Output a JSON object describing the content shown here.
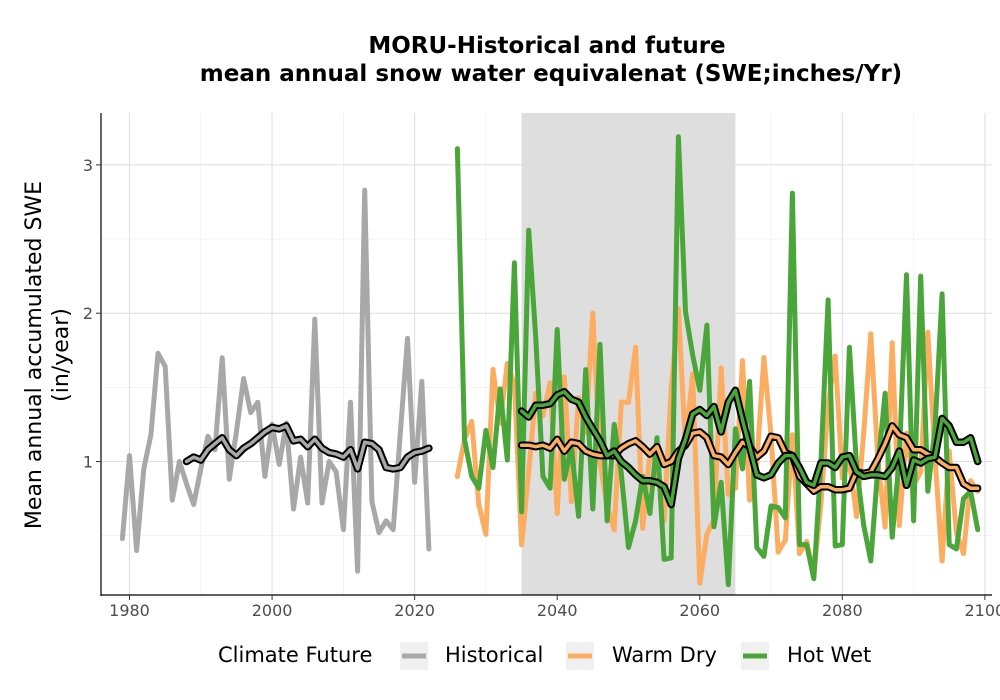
{
  "chart_data": {
    "type": "line",
    "title_line1": "MORU-Historical and future",
    "title_line2": "mean annual snow water equivalenat (SWE;inches/Yr)",
    "xlabel": "",
    "ylabel_line1": "Mean annual accumulated SWE",
    "ylabel_line2": "(in/year)",
    "xlim": [
      1976,
      2101
    ],
    "ylim": [
      0.1,
      3.35
    ],
    "x_ticks": [
      1980,
      2000,
      2020,
      2040,
      2060,
      2080,
      2100
    ],
    "y_ticks": [
      1,
      2,
      3
    ],
    "grid": true,
    "shaded_period": [
      2035,
      2065
    ],
    "legend": {
      "title": "Climate Future",
      "placement": "bottom",
      "entries": [
        "Historical",
        "Warm Dry",
        "Hot Wet"
      ]
    },
    "colors": {
      "Historical": "#a8a8a8",
      "Warm Dry": "#fdad62",
      "Hot Wet": "#4aa63a",
      "moving_average_core": "#000000",
      "shaded_period": "#dcdcdc"
    },
    "series": [
      {
        "name": "Historical",
        "x": [
          1979,
          1980,
          1981,
          1982,
          1983,
          1984,
          1985,
          1986,
          1987,
          1988,
          1989,
          1990,
          1991,
          1992,
          1993,
          1994,
          1995,
          1996,
          1997,
          1998,
          1999,
          2000,
          2001,
          2002,
          2003,
          2004,
          2005,
          2006,
          2007,
          2008,
          2009,
          2010,
          2011,
          2012,
          2013,
          2014,
          2015,
          2016,
          2017,
          2018,
          2019,
          2020,
          2021,
          2022
        ],
        "values": [
          0.48,
          1.04,
          0.4,
          0.95,
          1.18,
          1.73,
          1.64,
          0.74,
          1.0,
          0.85,
          0.71,
          0.95,
          1.17,
          1.08,
          1.7,
          0.88,
          1.2,
          1.56,
          1.33,
          1.4,
          0.9,
          1.25,
          0.98,
          1.26,
          0.68,
          1.03,
          0.72,
          1.96,
          0.72,
          1.0,
          0.93,
          0.54,
          1.4,
          0.26,
          2.83,
          0.73,
          0.52,
          0.6,
          0.54,
          1.2,
          1.83,
          0.86,
          1.54,
          0.41
        ],
        "moving_average": {
          "x": [
            1988,
            1989,
            1990,
            1991,
            1992,
            1993,
            1994,
            1995,
            1996,
            1997,
            1998,
            1999,
            2000,
            2001,
            2002,
            2003,
            2004,
            2005,
            2006,
            2007,
            2008,
            2009,
            2010,
            2011,
            2012,
            2013,
            2014,
            2015,
            2016,
            2017,
            2018,
            2019,
            2020,
            2021,
            2022
          ],
          "values": [
            1.0,
            1.03,
            1.01,
            1.08,
            1.12,
            1.16,
            1.08,
            1.04,
            1.09,
            1.12,
            1.16,
            1.2,
            1.23,
            1.22,
            1.24,
            1.14,
            1.15,
            1.1,
            1.15,
            1.09,
            1.06,
            1.05,
            1.03,
            1.08,
            0.95,
            1.13,
            1.12,
            1.08,
            0.96,
            0.95,
            0.96,
            1.03,
            1.06,
            1.07,
            1.09
          ]
        }
      },
      {
        "name": "Warm Dry",
        "x": [
          2026,
          2027,
          2028,
          2029,
          2030,
          2031,
          2032,
          2033,
          2034,
          2035,
          2036,
          2037,
          2038,
          2039,
          2040,
          2041,
          2042,
          2043,
          2044,
          2045,
          2046,
          2047,
          2048,
          2049,
          2050,
          2051,
          2052,
          2053,
          2054,
          2055,
          2056,
          2057,
          2058,
          2059,
          2060,
          2061,
          2062,
          2063,
          2064,
          2065,
          2066,
          2067,
          2068,
          2069,
          2070,
          2071,
          2072,
          2073,
          2074,
          2075,
          2076,
          2077,
          2078,
          2079,
          2080,
          2081,
          2082,
          2083,
          2084,
          2085,
          2086,
          2087,
          2088,
          2089,
          2090,
          2091,
          2092,
          2093,
          2094,
          2095,
          2096,
          2097,
          2098,
          2099
        ],
        "values": [
          0.9,
          1.15,
          1.27,
          0.71,
          0.51,
          1.62,
          1.26,
          1.66,
          1.52,
          0.44,
          0.93,
          1.46,
          1.31,
          1.53,
          0.65,
          1.57,
          0.73,
          1.43,
          1.2,
          2.0,
          0.99,
          0.7,
          0.54,
          1.4,
          1.4,
          1.77,
          0.55,
          1.06,
          0.99,
          0.6,
          1.49,
          2.03,
          1.1,
          1.59,
          0.18,
          0.51,
          0.61,
          1.63,
          0.78,
          0.82,
          1.68,
          0.74,
          0.99,
          1.7,
          1.18,
          0.39,
          0.47,
          1.18,
          0.38,
          0.46,
          0.24,
          0.71,
          1.38,
          1.71,
          0.89,
          1.0,
          0.63,
          1.19,
          1.86,
          1.0,
          0.56,
          1.8,
          0.57,
          1.19,
          0.84,
          0.93,
          1.87,
          1.03,
          0.33,
          1.07,
          0.52,
          0.38,
          0.87,
          0.8
        ],
        "moving_average": {
          "x": [
            2035,
            2036,
            2037,
            2038,
            2039,
            2040,
            2041,
            2042,
            2043,
            2044,
            2045,
            2046,
            2047,
            2048,
            2049,
            2050,
            2051,
            2052,
            2053,
            2054,
            2055,
            2056,
            2057,
            2058,
            2059,
            2060,
            2061,
            2062,
            2063,
            2064,
            2065,
            2066,
            2067,
            2068,
            2069,
            2070,
            2071,
            2072,
            2073,
            2074,
            2075,
            2076,
            2077,
            2078,
            2079,
            2080,
            2081,
            2082,
            2083,
            2084,
            2085,
            2086,
            2087,
            2088,
            2089,
            2090,
            2091,
            2092,
            2093,
            2094,
            2095,
            2096,
            2097,
            2098,
            2099
          ],
          "values": [
            1.11,
            1.11,
            1.1,
            1.11,
            1.09,
            1.15,
            1.07,
            1.13,
            1.12,
            1.07,
            1.05,
            1.04,
            1.04,
            1.04,
            1.09,
            1.12,
            1.14,
            1.1,
            1.05,
            1.1,
            0.98,
            1.0,
            1.07,
            1.11,
            1.19,
            1.2,
            1.16,
            1.04,
            1.03,
            0.98,
            1.06,
            1.13,
            1.1,
            1.03,
            1.07,
            1.17,
            1.16,
            1.06,
            1.04,
            0.9,
            0.85,
            0.8,
            0.83,
            0.83,
            0.81,
            0.81,
            0.82,
            0.93,
            0.92,
            0.93,
            1.02,
            1.12,
            1.24,
            1.18,
            1.16,
            1.08,
            1.08,
            1.05,
            1.03,
            0.99,
            0.96,
            0.96,
            0.85,
            0.82,
            0.82
          ]
        }
      },
      {
        "name": "Hot Wet",
        "x": [
          2026,
          2027,
          2028,
          2029,
          2030,
          2031,
          2032,
          2033,
          2034,
          2035,
          2036,
          2037,
          2038,
          2039,
          2040,
          2041,
          2042,
          2043,
          2044,
          2045,
          2046,
          2047,
          2048,
          2049,
          2050,
          2051,
          2052,
          2053,
          2054,
          2055,
          2056,
          2057,
          2058,
          2059,
          2060,
          2061,
          2062,
          2063,
          2064,
          2065,
          2066,
          2067,
          2068,
          2069,
          2070,
          2071,
          2072,
          2073,
          2074,
          2075,
          2076,
          2077,
          2078,
          2079,
          2080,
          2081,
          2082,
          2083,
          2084,
          2085,
          2086,
          2087,
          2088,
          2089,
          2090,
          2091,
          2092,
          2093,
          2094,
          2095,
          2096,
          2097,
          2098,
          2099
        ],
        "values": [
          3.11,
          1.15,
          0.9,
          0.82,
          1.21,
          0.96,
          1.49,
          1.01,
          2.34,
          0.66,
          2.56,
          1.83,
          0.9,
          0.82,
          1.89,
          0.88,
          1.1,
          0.63,
          1.62,
          0.68,
          1.79,
          0.6,
          1.25,
          0.92,
          0.42,
          0.6,
          0.9,
          0.65,
          1.16,
          0.34,
          0.35,
          3.19,
          2.01,
          1.72,
          1.48,
          1.92,
          0.56,
          0.86,
          0.17,
          1.22,
          0.95,
          1.54,
          0.42,
          0.36,
          0.7,
          0.69,
          0.62,
          2.81,
          0.44,
          0.44,
          0.21,
          0.99,
          2.09,
          0.43,
          0.44,
          1.77,
          0.96,
          0.57,
          0.33,
          0.97,
          1.46,
          0.49,
          1.02,
          2.26,
          0.6,
          2.25,
          0.8,
          1.22,
          2.13,
          0.44,
          0.41,
          0.75,
          0.8,
          0.54
        ],
        "moving_average": {
          "x": [
            2035,
            2036,
            2037,
            2038,
            2039,
            2040,
            2041,
            2042,
            2043,
            2044,
            2045,
            2046,
            2047,
            2048,
            2049,
            2050,
            2051,
            2052,
            2053,
            2054,
            2055,
            2056,
            2057,
            2058,
            2059,
            2060,
            2061,
            2062,
            2063,
            2064,
            2065,
            2066,
            2067,
            2068,
            2069,
            2070,
            2071,
            2072,
            2073,
            2074,
            2075,
            2076,
            2077,
            2078,
            2079,
            2080,
            2081,
            2082,
            2083,
            2084,
            2085,
            2086,
            2087,
            2088,
            2089,
            2090,
            2091,
            2092,
            2093,
            2094,
            2095,
            2096,
            2097,
            2098,
            2099
          ],
          "values": [
            1.34,
            1.3,
            1.38,
            1.38,
            1.39,
            1.45,
            1.47,
            1.42,
            1.4,
            1.3,
            1.22,
            1.14,
            1.04,
            1.07,
            1.0,
            0.96,
            0.91,
            0.87,
            0.87,
            0.86,
            0.83,
            0.71,
            1.02,
            1.15,
            1.32,
            1.35,
            1.31,
            1.37,
            1.2,
            1.4,
            1.48,
            1.28,
            1.1,
            0.91,
            0.89,
            0.91,
            0.99,
            1.04,
            1.04,
            0.96,
            0.86,
            0.84,
            0.99,
            0.99,
            0.96,
            1.03,
            1.04,
            0.93,
            0.9,
            0.91,
            0.91,
            0.9,
            0.96,
            1.07,
            0.84,
            1.01,
            0.99,
            1.02,
            1.03,
            1.29,
            1.24,
            1.13,
            1.13,
            1.16,
            1.0
          ]
        }
      }
    ]
  }
}
